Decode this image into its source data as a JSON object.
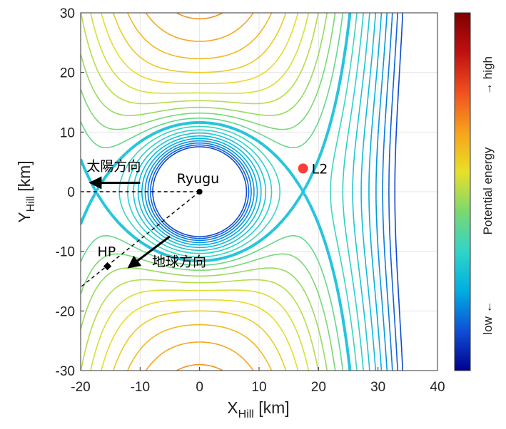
{
  "chart_data": {
    "type": "contour",
    "title": "",
    "xlabel_main": "X",
    "xlabel_sub": "Hill",
    "xlabel_unit": " [km]",
    "ylabel_main": "Y",
    "ylabel_sub": "Hill",
    "ylabel_unit": " [km]",
    "xlim": [
      -20,
      40
    ],
    "ylim": [
      -30,
      30
    ],
    "xticks": [
      -20,
      -10,
      0,
      10,
      20,
      30,
      40
    ],
    "yticks": [
      -30,
      -20,
      -10,
      0,
      10,
      20,
      30
    ],
    "grid": true,
    "colormap": "jet",
    "colorbar": {
      "low_label": "low ←",
      "middle_label": "Potential energy",
      "high_label": "→ high",
      "colors": [
        "#00008f",
        "#0f4fd8",
        "#00aee0",
        "#30d5c8",
        "#7bd870",
        "#e9e028",
        "#f7a21b",
        "#f05020",
        "#c01010",
        "#7f0000"
      ]
    },
    "points": [
      {
        "name": "Ryugu",
        "x": 0,
        "y": 0,
        "color": "#000000"
      },
      {
        "name": "L2",
        "x": 17.4,
        "y": 3.9,
        "color": "#ff3b3b"
      },
      {
        "name": "HP",
        "x": -15.5,
        "y": -12.5,
        "color": "#000000"
      }
    ],
    "annotations": [
      {
        "text": "太陽方向",
        "meaning": "sun direction",
        "x": -19,
        "y": 3.5,
        "arrow_from": [
          -10,
          1.5
        ],
        "arrow_to": [
          -18.2,
          1.5
        ]
      },
      {
        "text": "地球方向",
        "meaning": "earth direction",
        "x": -8,
        "y": -12.5,
        "arrow_from": [
          -5,
          -7.5
        ],
        "arrow_to": [
          -11.8,
          -12.6
        ]
      }
    ],
    "reference_lines": [
      {
        "style": "dashed",
        "from": [
          0,
          0
        ],
        "to": [
          -20,
          0
        ]
      },
      {
        "style": "dashed",
        "from": [
          0,
          0
        ],
        "to": [
          -20,
          -16
        ]
      }
    ],
    "zero_velocity_curve": {
      "through": "L2",
      "color": "#25c4dc"
    }
  }
}
